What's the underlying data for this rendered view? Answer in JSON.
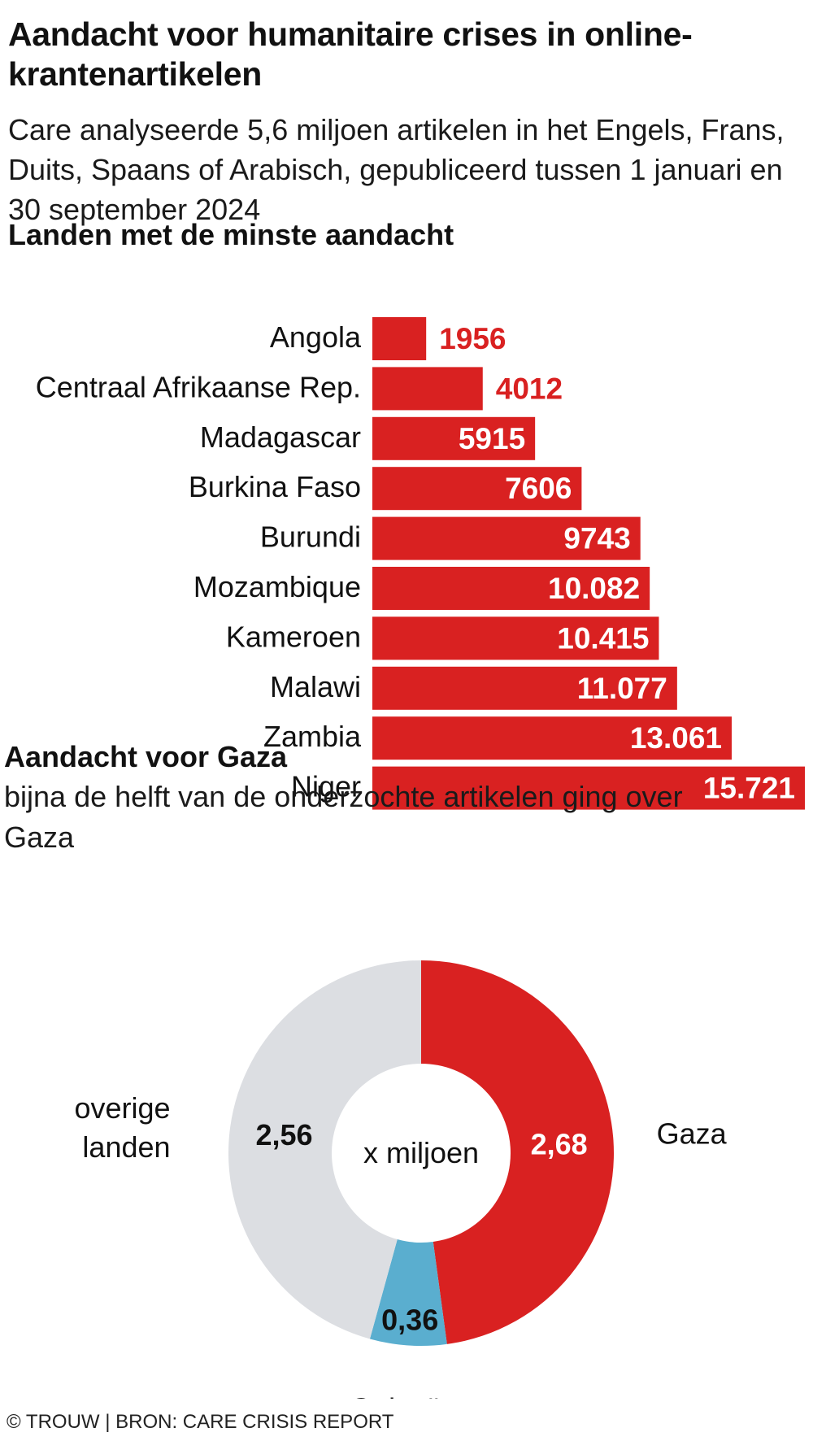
{
  "title": "Aandacht voor humanitaire crises in online-krantenartikelen",
  "subtitle": "Care analyseerde 5,6 miljoen artikelen in het Engels, Frans, Duits, Spaans of Arabisch, gepubliceerd tussen 1 januari en 30 september 2024",
  "source": "© TROUW | BRON: CARE CRISIS REPORT",
  "colors": {
    "red": "#d92121",
    "grey": "#dcdee2",
    "blue": "#5aaecf",
    "text": "#111111"
  },
  "chart_data": [
    {
      "type": "bar",
      "orientation": "horizontal",
      "title": "Landen met de minste aandacht",
      "categories": [
        "Angola",
        "Centraal Afrikaanse Rep.",
        "Madagascar",
        "Burkina Faso",
        "Burundi",
        "Mozambique",
        "Kameroen",
        "Malawi",
        "Zambia",
        "Niger"
      ],
      "values": [
        1956,
        4012,
        5915,
        7606,
        9743,
        10082,
        10415,
        11077,
        13061,
        15721
      ],
      "value_labels": [
        "1956",
        "4012",
        "5915",
        "7606",
        "9743",
        "10.082",
        "10.415",
        "11.077",
        "13.061",
        "15.721"
      ],
      "xlim": [
        0,
        15721
      ]
    },
    {
      "type": "pie",
      "variant": "donut",
      "title": "Aandacht voor Gaza",
      "subtitle": "bijna de helft van de onderzochte artikelen ging over Gaza",
      "center_label": "x miljoen",
      "unit": "miljoen artikelen",
      "slices": [
        {
          "name": "Gaza",
          "value": 2.68,
          "label": "2,68",
          "color": "#d92121"
        },
        {
          "name": "Oekraïne",
          "value": 0.36,
          "label": "0,36",
          "color": "#5aaecf"
        },
        {
          "name": "overige landen",
          "value": 2.56,
          "label": "2,56",
          "color": "#dcdee2"
        }
      ]
    }
  ]
}
